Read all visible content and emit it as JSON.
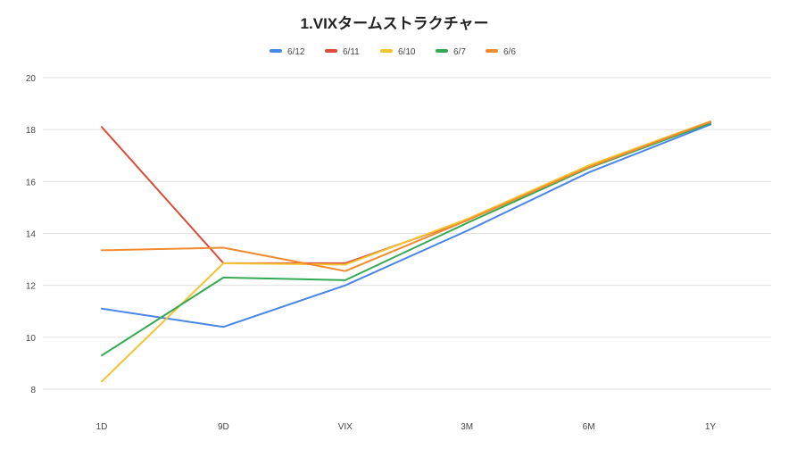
{
  "chart_data": {
    "type": "line",
    "title": "1.VIXタームストラクチャー",
    "xlabel": "",
    "ylabel": "",
    "categories": [
      "1D",
      "9D",
      "VIX",
      "3M",
      "6M",
      "1Y"
    ],
    "ylim": [
      8,
      20
    ],
    "yticks": [
      8,
      10,
      12,
      14,
      16,
      18,
      20
    ],
    "grid": true,
    "legend_position": "top-center",
    "series": [
      {
        "name": "6/12",
        "color": "#4a86e8",
        "values": [
          11.1,
          10.4,
          12.0,
          14.1,
          16.35,
          18.2
        ]
      },
      {
        "name": "6/11",
        "color": "#dd4b39",
        "values": [
          18.1,
          12.85,
          12.85,
          14.5,
          16.6,
          18.3
        ]
      },
      {
        "name": "6/10",
        "color": "#f4c430",
        "values": [
          8.3,
          12.85,
          12.8,
          14.55,
          16.62,
          18.32
        ]
      },
      {
        "name": "6/7",
        "color": "#34a853",
        "values": [
          9.3,
          12.3,
          12.2,
          14.4,
          16.52,
          18.25
        ]
      },
      {
        "name": "6/6",
        "color": "#f28a30",
        "values": [
          13.35,
          13.45,
          12.55,
          14.5,
          16.55,
          18.3
        ]
      }
    ]
  }
}
